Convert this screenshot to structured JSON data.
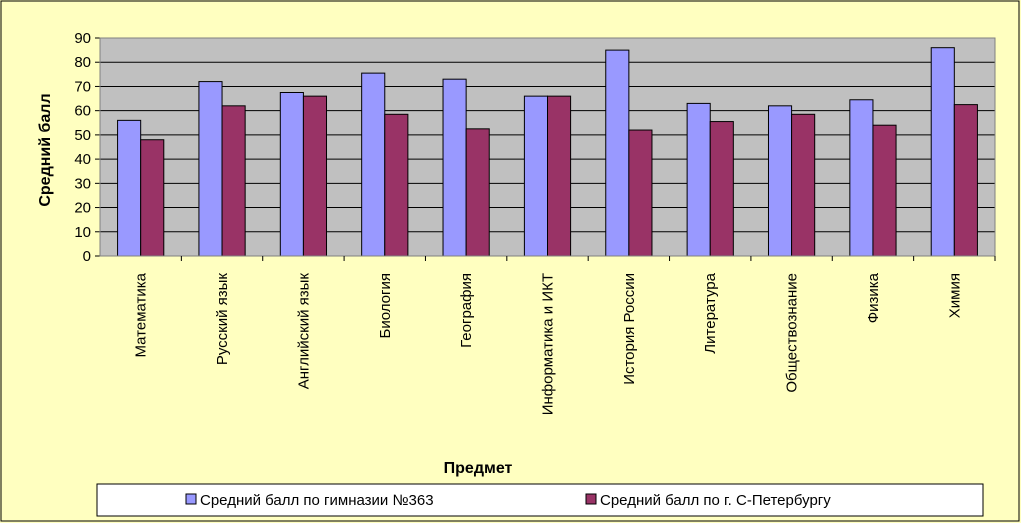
{
  "chart_data": {
    "type": "bar",
    "title": "",
    "xlabel": "Предмет",
    "ylabel": "Средний балл",
    "ylim": [
      0,
      90
    ],
    "ytick_step": 10,
    "grid": true,
    "legend_position": "bottom",
    "plot_background": "#c0c0c0",
    "page_background": "#ffffc0",
    "categories": [
      "Математика",
      "Русский язык",
      "Английский язык",
      "Биология",
      "География",
      "Информатика и ИКТ",
      "История России",
      "Литература",
      "Обществознание",
      "Физика",
      "Химия"
    ],
    "series": [
      {
        "name": "Средний балл по гимназии №363",
        "color": "#9999ff",
        "values": [
          56,
          72,
          67.5,
          75.5,
          73,
          66,
          85,
          63,
          62,
          64.5,
          86
        ]
      },
      {
        "name": "Средний балл по г. С-Петербургу",
        "color": "#993366",
        "values": [
          48,
          62,
          66,
          58.5,
          52.5,
          66,
          52,
          55.5,
          58.5,
          54,
          62.5
        ]
      }
    ]
  }
}
